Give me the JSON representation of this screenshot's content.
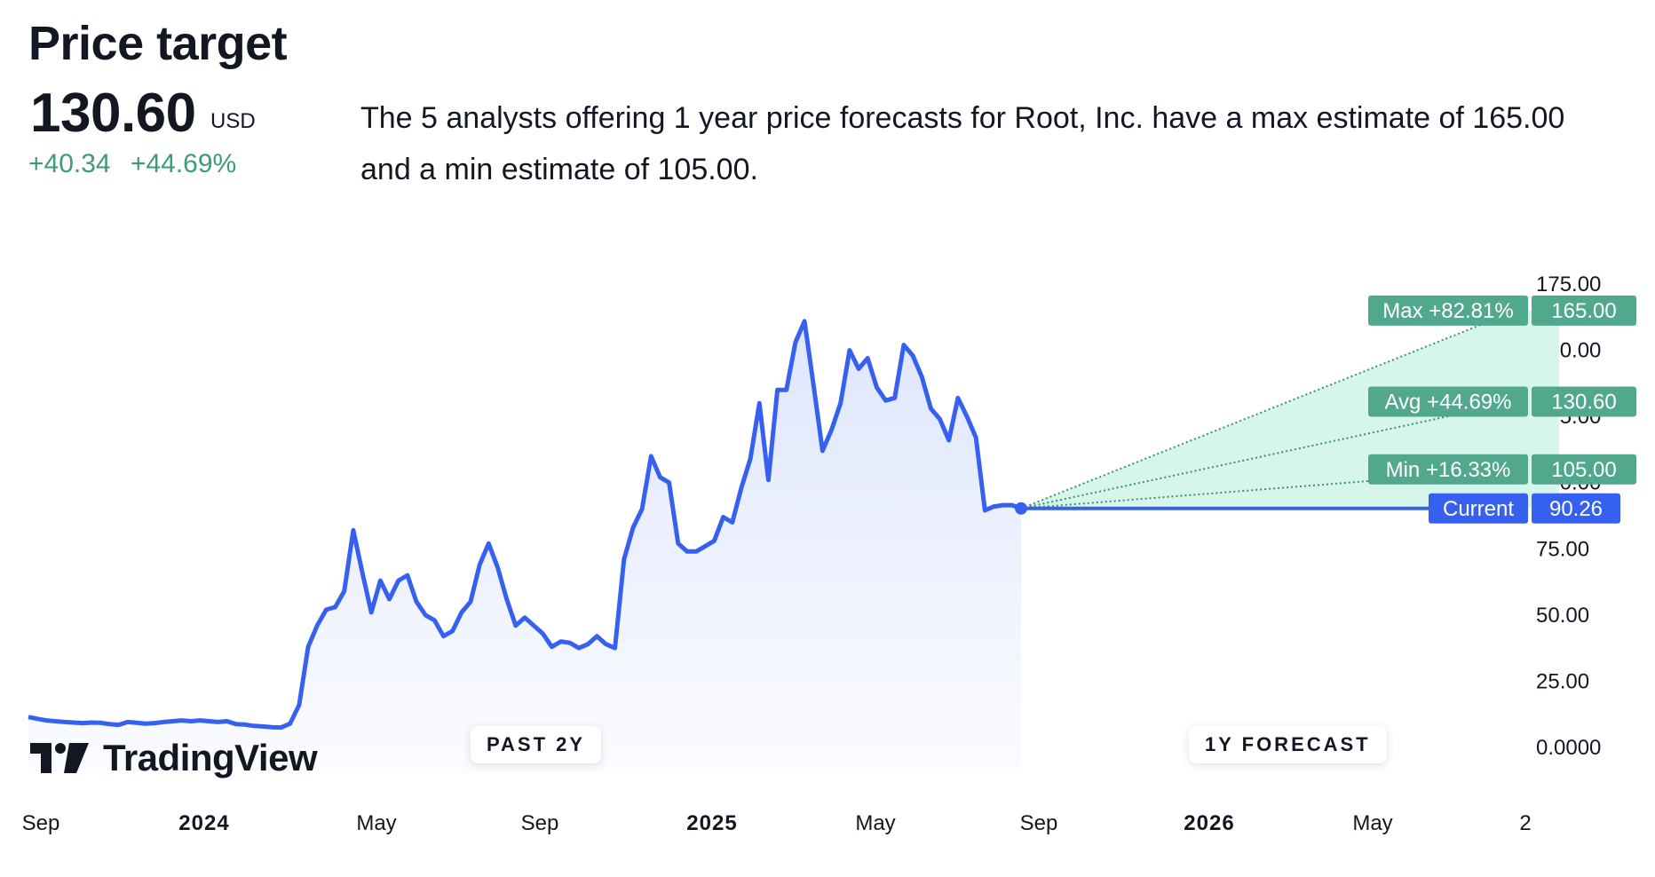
{
  "header": {
    "title": "Price target",
    "price": "130.60",
    "currency": "USD",
    "change_abs": "+40.34",
    "change_pct": "+44.69%",
    "description": "The 5 analysts offering 1 year price forecasts for Root, Inc. have a max estimate of 165.00 and a min estimate of 105.00."
  },
  "branding": {
    "logo_text": "TradingView"
  },
  "pills": {
    "past": "PAST 2Y",
    "forecast": "1Y FORECAST"
  },
  "colors": {
    "line": "#3661f0",
    "forecast_fill": "#d6f5ec",
    "forecast_label": "#52a88c",
    "current_label": "#3661f0",
    "positive": "#3d9a7a"
  },
  "chart_data": {
    "type": "line",
    "y_axis": {
      "ylim": [
        0,
        175
      ],
      "ticks": [
        "175.00",
        "150.00",
        "125.00",
        "100.00",
        "75.00",
        "50.00",
        "25.00",
        "0.0000"
      ]
    },
    "x_ticks": [
      {
        "label": "Sep",
        "bold": false
      },
      {
        "label": "2024",
        "bold": true
      },
      {
        "label": "May",
        "bold": false
      },
      {
        "label": "Sep",
        "bold": false
      },
      {
        "label": "2025",
        "bold": true
      },
      {
        "label": "May",
        "bold": false
      },
      {
        "label": "Sep",
        "bold": false
      },
      {
        "label": "2026",
        "bold": true
      },
      {
        "label": "May",
        "bold": false
      },
      {
        "label": "2",
        "bold": false
      }
    ],
    "series": [
      {
        "values": [
          11.5,
          10.8,
          10.2,
          9.9,
          9.6,
          9.4,
          9.2,
          9.4,
          9.3,
          8.8,
          8.5,
          9.6,
          9.3,
          9.0,
          9.2,
          9.6,
          9.9,
          10.2,
          9.9,
          10.2,
          9.9,
          9.6,
          9.9,
          8.8,
          8.6,
          8.1,
          7.9,
          7.6,
          7.5,
          9.0,
          16.0,
          38.0,
          46.0,
          52.0,
          53.0,
          59.0,
          82.0,
          66.0,
          51.0,
          63.0,
          56.0,
          63.0,
          65.0,
          55.0,
          50.0,
          48.0,
          42.0,
          44.0,
          51.0,
          55.0,
          69.0,
          77.0,
          68.0,
          56.0,
          46.0,
          49.0,
          46.0,
          43.0,
          38.0,
          40.0,
          39.5,
          37.5,
          39.0,
          42.0,
          39.0,
          37.5,
          71.0,
          83.0,
          90.0,
          110.0,
          102.0,
          100.0,
          77.0,
          74.0,
          74.0,
          76.0,
          78.0,
          87.0,
          85.0,
          98.0,
          109.0,
          130.0,
          101.0,
          135.0,
          135.0,
          153.0,
          161.0,
          137.0,
          112.0,
          120.0,
          130.0,
          150.0,
          143.0,
          147.0,
          136.0,
          131.0,
          132.0,
          152.0,
          148.0,
          140.0,
          128.0,
          124.0,
          116.0,
          132.0,
          125.0,
          117.0,
          89.5,
          91.0,
          91.5,
          91.5,
          90.26
        ]
      }
    ],
    "current": {
      "label": "Current",
      "value": 90.26
    },
    "forecast": [
      {
        "label": "Max +82.81%",
        "value": 165.0,
        "value_text": "165.00"
      },
      {
        "label": "Avg +44.69%",
        "value": 130.6,
        "value_text": "130.60"
      },
      {
        "label": "Min +16.33%",
        "value": 105.0,
        "value_text": "105.00"
      }
    ],
    "current_value_text": "90.26"
  }
}
